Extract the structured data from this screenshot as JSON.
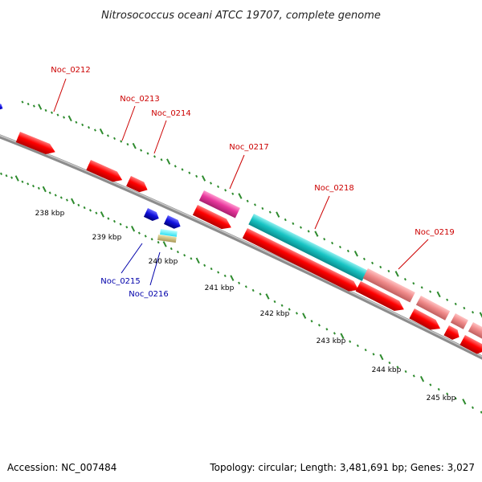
{
  "title": "Nitrosococcus oceani ATCC 19707, complete genome",
  "footer": {
    "accession": "Accession: NC_007484",
    "topology": "Topology: circular; Length: 3,481,691 bp; Genes: 3,027"
  },
  "colors": {
    "backbone": "#8c8c8c",
    "tick": "#2e8b2e",
    "label_red": "#cc0000",
    "label_blue": "#0000aa",
    "cds": "#ff0000",
    "cyan": "#18c4c4",
    "magenta": "#e8379c",
    "salmon": "#f08a8a",
    "blue": "#1010dd",
    "tan": "#c8b878"
  },
  "scale_labels": [
    "238 kbp",
    "239 kbp",
    "240 kbp",
    "241 kbp",
    "242 kbp",
    "243 kbp",
    "244 kbp",
    "245 kbp"
  ],
  "gene_labels": {
    "noc_0212": "Noc_0212",
    "noc_0213": "Noc_0213",
    "noc_0214": "Noc_0214",
    "noc_0215": "Noc_0215",
    "noc_0216": "Noc_0216",
    "noc_0217": "Noc_0217",
    "noc_0218": "Noc_0218",
    "noc_0219": "Noc_0219"
  }
}
